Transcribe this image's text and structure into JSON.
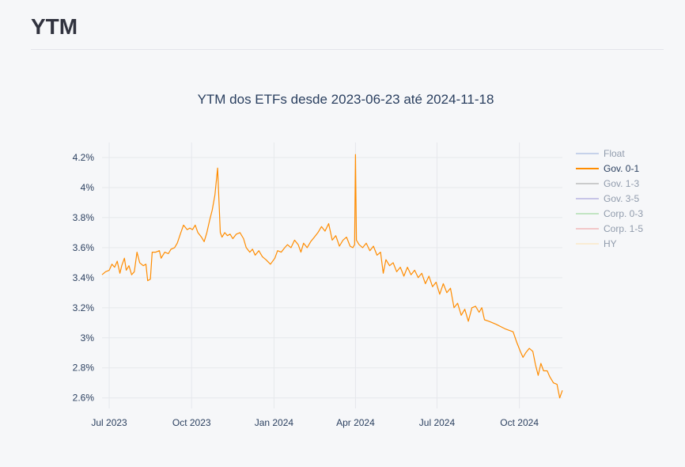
{
  "page": {
    "title": "YTM"
  },
  "chart_data": {
    "type": "line",
    "title": "YTM dos ETFs desde 2023-06-23 até 2024-11-18",
    "xlabel": "",
    "ylabel": "",
    "x_ticks": [
      "Jul 2023",
      "Oct 2023",
      "Jan 2024",
      "Apr 2024",
      "Jul 2024",
      "Oct 2024"
    ],
    "x_tick_dates": [
      "2023-07-01",
      "2023-10-01",
      "2024-01-01",
      "2024-04-01",
      "2024-07-01",
      "2024-10-01"
    ],
    "xlim": [
      "2023-06-23",
      "2024-11-18"
    ],
    "y_ticks": [
      "2.6%",
      "2.8%",
      "3%",
      "3.2%",
      "3.4%",
      "3.6%",
      "3.8%",
      "4%",
      "4.2%"
    ],
    "y_tick_values": [
      2.6,
      2.8,
      3.0,
      3.2,
      3.4,
      3.6,
      3.8,
      4.0,
      4.2
    ],
    "ylim": [
      2.53,
      4.3
    ],
    "grid": true,
    "legend_position": "right",
    "series": [
      {
        "name": "Float",
        "color": "#98aedc",
        "visible": false,
        "values": []
      },
      {
        "name": "Gov. 0-1",
        "color": "#ff8c00",
        "visible": true,
        "points": [
          [
            "2023-06-23",
            3.42
          ],
          [
            "2023-06-27",
            3.44
          ],
          [
            "2023-07-01",
            3.45
          ],
          [
            "2023-07-04",
            3.49
          ],
          [
            "2023-07-07",
            3.47
          ],
          [
            "2023-07-10",
            3.51
          ],
          [
            "2023-07-13",
            3.43
          ],
          [
            "2023-07-15",
            3.48
          ],
          [
            "2023-07-18",
            3.53
          ],
          [
            "2023-07-20",
            3.45
          ],
          [
            "2023-07-23",
            3.48
          ],
          [
            "2023-07-26",
            3.42
          ],
          [
            "2023-07-29",
            3.44
          ],
          [
            "2023-08-01",
            3.57
          ],
          [
            "2023-08-04",
            3.5
          ],
          [
            "2023-08-08",
            3.48
          ],
          [
            "2023-08-11",
            3.49
          ],
          [
            "2023-08-13",
            3.38
          ],
          [
            "2023-08-16",
            3.39
          ],
          [
            "2023-08-18",
            3.57
          ],
          [
            "2023-08-22",
            3.57
          ],
          [
            "2023-08-26",
            3.58
          ],
          [
            "2023-08-28",
            3.53
          ],
          [
            "2023-09-01",
            3.57
          ],
          [
            "2023-09-05",
            3.56
          ],
          [
            "2023-09-08",
            3.59
          ],
          [
            "2023-09-12",
            3.6
          ],
          [
            "2023-09-15",
            3.63
          ],
          [
            "2023-09-19",
            3.7
          ],
          [
            "2023-09-22",
            3.75
          ],
          [
            "2023-09-26",
            3.72
          ],
          [
            "2023-09-29",
            3.73
          ],
          [
            "2023-10-02",
            3.72
          ],
          [
            "2023-10-05",
            3.75
          ],
          [
            "2023-10-08",
            3.7
          ],
          [
            "2023-10-12",
            3.67
          ],
          [
            "2023-10-15",
            3.64
          ],
          [
            "2023-10-18",
            3.7
          ],
          [
            "2023-10-21",
            3.78
          ],
          [
            "2023-10-24",
            3.85
          ],
          [
            "2023-10-27",
            3.95
          ],
          [
            "2023-10-30",
            4.13
          ],
          [
            "2023-11-02",
            3.7
          ],
          [
            "2023-11-04",
            3.67
          ],
          [
            "2023-11-07",
            3.7
          ],
          [
            "2023-11-10",
            3.68
          ],
          [
            "2023-11-13",
            3.69
          ],
          [
            "2023-11-16",
            3.66
          ],
          [
            "2023-11-20",
            3.69
          ],
          [
            "2023-11-24",
            3.7
          ],
          [
            "2023-11-28",
            3.66
          ],
          [
            "2023-12-01",
            3.6
          ],
          [
            "2023-12-05",
            3.57
          ],
          [
            "2023-12-08",
            3.59
          ],
          [
            "2023-12-11",
            3.55
          ],
          [
            "2023-12-15",
            3.58
          ],
          [
            "2023-12-19",
            3.54
          ],
          [
            "2023-12-23",
            3.52
          ],
          [
            "2023-12-28",
            3.49
          ],
          [
            "2024-01-02",
            3.53
          ],
          [
            "2024-01-05",
            3.58
          ],
          [
            "2024-01-09",
            3.57
          ],
          [
            "2024-01-13",
            3.6
          ],
          [
            "2024-01-16",
            3.62
          ],
          [
            "2024-01-20",
            3.6
          ],
          [
            "2024-01-24",
            3.65
          ],
          [
            "2024-01-28",
            3.62
          ],
          [
            "2024-01-31",
            3.57
          ],
          [
            "2024-02-03",
            3.63
          ],
          [
            "2024-02-07",
            3.6
          ],
          [
            "2024-02-11",
            3.64
          ],
          [
            "2024-02-15",
            3.67
          ],
          [
            "2024-02-19",
            3.7
          ],
          [
            "2024-02-23",
            3.74
          ],
          [
            "2024-02-27",
            3.71
          ],
          [
            "2024-03-02",
            3.76
          ],
          [
            "2024-03-06",
            3.65
          ],
          [
            "2024-03-10",
            3.68
          ],
          [
            "2024-03-14",
            3.61
          ],
          [
            "2024-03-18",
            3.65
          ],
          [
            "2024-03-22",
            3.67
          ],
          [
            "2024-03-26",
            3.61
          ],
          [
            "2024-03-29",
            3.6
          ],
          [
            "2024-03-31",
            3.62
          ],
          [
            "2024-04-01",
            4.22
          ],
          [
            "2024-04-02",
            3.65
          ],
          [
            "2024-04-05",
            3.62
          ],
          [
            "2024-04-09",
            3.6
          ],
          [
            "2024-04-13",
            3.63
          ],
          [
            "2024-04-17",
            3.58
          ],
          [
            "2024-04-21",
            3.61
          ],
          [
            "2024-04-25",
            3.55
          ],
          [
            "2024-04-29",
            3.57
          ],
          [
            "2024-05-02",
            3.43
          ],
          [
            "2024-05-05",
            3.52
          ],
          [
            "2024-05-09",
            3.48
          ],
          [
            "2024-05-13",
            3.5
          ],
          [
            "2024-05-17",
            3.44
          ],
          [
            "2024-05-21",
            3.47
          ],
          [
            "2024-05-25",
            3.41
          ],
          [
            "2024-05-29",
            3.47
          ],
          [
            "2024-06-02",
            3.42
          ],
          [
            "2024-06-06",
            3.45
          ],
          [
            "2024-06-10",
            3.4
          ],
          [
            "2024-06-14",
            3.43
          ],
          [
            "2024-06-18",
            3.36
          ],
          [
            "2024-06-22",
            3.41
          ],
          [
            "2024-06-26",
            3.34
          ],
          [
            "2024-06-30",
            3.37
          ],
          [
            "2024-07-04",
            3.29
          ],
          [
            "2024-07-08",
            3.36
          ],
          [
            "2024-07-12",
            3.3
          ],
          [
            "2024-07-16",
            3.33
          ],
          [
            "2024-07-20",
            3.2
          ],
          [
            "2024-07-24",
            3.23
          ],
          [
            "2024-07-28",
            3.15
          ],
          [
            "2024-08-01",
            3.19
          ],
          [
            "2024-08-05",
            3.11
          ],
          [
            "2024-08-09",
            3.2
          ],
          [
            "2024-08-13",
            3.21
          ],
          [
            "2024-08-17",
            3.17
          ],
          [
            "2024-08-20",
            3.2
          ],
          [
            "2024-08-23",
            3.12
          ],
          [
            "2024-08-28",
            3.11
          ],
          [
            "2024-09-05",
            3.09
          ],
          [
            "2024-09-15",
            3.06
          ],
          [
            "2024-09-24",
            3.04
          ],
          [
            "2024-09-28",
            2.97
          ],
          [
            "2024-10-02",
            2.91
          ],
          [
            "2024-10-05",
            2.87
          ],
          [
            "2024-10-08",
            2.9
          ],
          [
            "2024-10-12",
            2.93
          ],
          [
            "2024-10-16",
            2.91
          ],
          [
            "2024-10-19",
            2.82
          ],
          [
            "2024-10-22",
            2.75
          ],
          [
            "2024-10-25",
            2.83
          ],
          [
            "2024-10-28",
            2.78
          ],
          [
            "2024-11-01",
            2.78
          ],
          [
            "2024-11-04",
            2.74
          ],
          [
            "2024-11-08",
            2.7
          ],
          [
            "2024-11-12",
            2.69
          ],
          [
            "2024-11-15",
            2.6
          ],
          [
            "2024-11-18",
            2.65
          ]
        ]
      },
      {
        "name": "Gov. 1-3",
        "color": "#a0a0a0",
        "visible": false,
        "values": []
      },
      {
        "name": "Gov. 3-5",
        "color": "#9a95d6",
        "visible": false,
        "values": []
      },
      {
        "name": "Corp. 0-3",
        "color": "#8fd48f",
        "visible": false,
        "values": []
      },
      {
        "name": "Corp. 1-5",
        "color": "#f09a9a",
        "visible": false,
        "values": []
      },
      {
        "name": "HY",
        "color": "#fde2b0",
        "visible": false,
        "values": []
      }
    ]
  }
}
